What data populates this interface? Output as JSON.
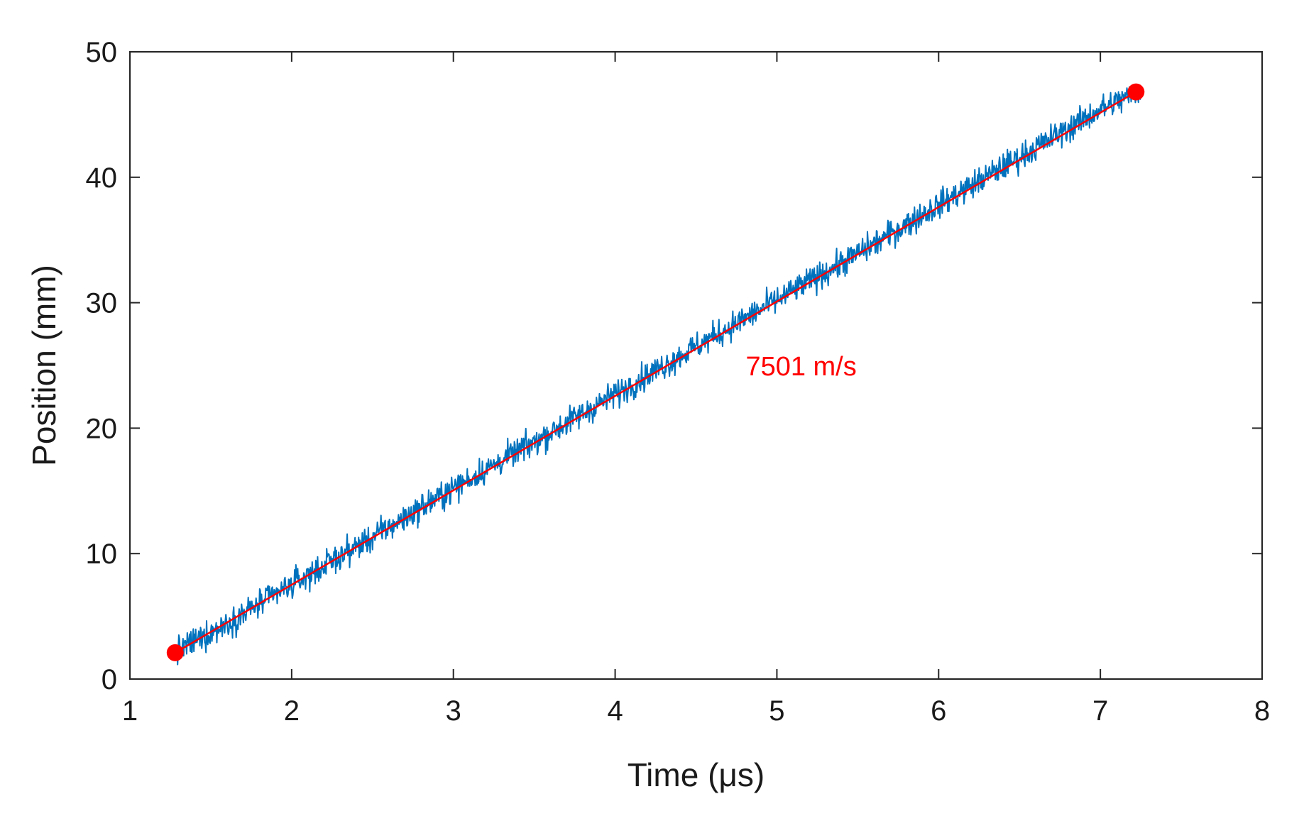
{
  "chart_data": {
    "type": "line",
    "xlabel": "Time (μs)",
    "ylabel": "Position (mm)",
    "xlim": [
      1,
      8
    ],
    "ylim": [
      0,
      50
    ],
    "xticks": [
      "1",
      "2",
      "3",
      "4",
      "5",
      "6",
      "7",
      "8"
    ],
    "yticks": [
      "0",
      "10",
      "20",
      "30",
      "40",
      "50"
    ],
    "grid": false,
    "series": [
      {
        "color": "#0072BD",
        "style": "noisy line",
        "x": [
          1.28,
          1.5,
          2.0,
          2.5,
          3.0,
          3.5,
          4.0,
          4.5,
          5.0,
          5.5,
          6.0,
          6.5,
          7.0,
          7.25
        ],
        "y": [
          2.2,
          3.7,
          7.5,
          11.3,
          15.2,
          18.9,
          22.7,
          26.5,
          30.2,
          33.9,
          37.8,
          41.6,
          45.4,
          46.9
        ]
      },
      {
        "color": "#FF0000",
        "style": "fit line with endpoint markers",
        "x": [
          1.28,
          7.22
        ],
        "y": [
          2.1,
          46.8
        ]
      }
    ],
    "annotations": [
      {
        "text": "7501 m/s",
        "color": "#FF0000",
        "x": 5.15,
        "y": 24.2
      }
    ]
  }
}
